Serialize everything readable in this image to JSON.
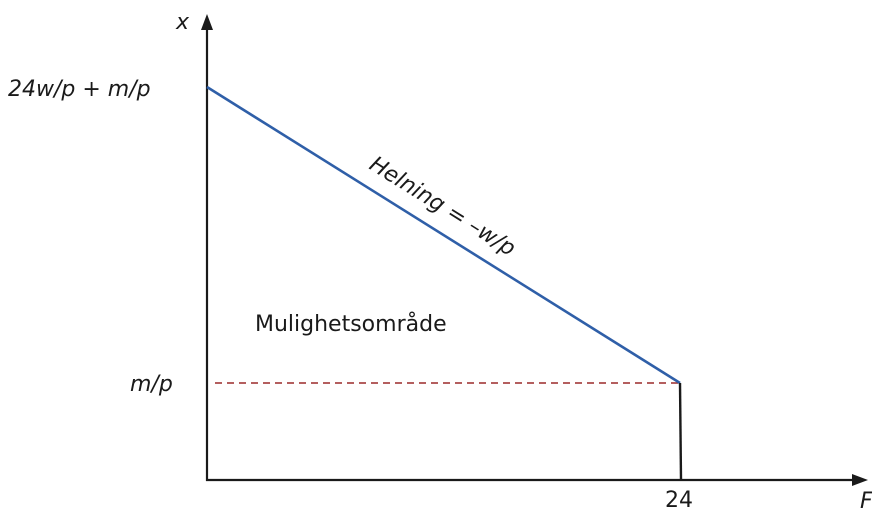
{
  "diagram": {
    "y_axis_label": "x",
    "x_axis_label": "F",
    "y_intercept_label": "24w/p + m/p",
    "kink_label": "m/p",
    "x_tick_label": "24",
    "slope_label": "Helning = –w/p",
    "region_label": "Mulighetsområde"
  },
  "colors": {
    "budget_line": "#2f5fa8",
    "dashed_line": "#9b2a2a",
    "axes": "#1a1a1a"
  }
}
